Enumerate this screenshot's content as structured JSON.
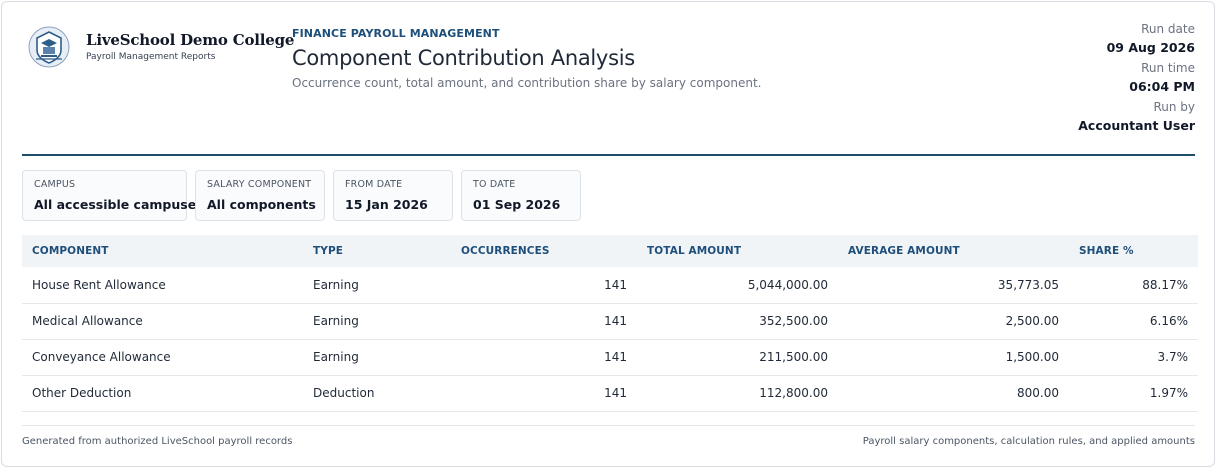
{
  "brand": {
    "name": "LiveSchool Demo College",
    "subtitle": "Payroll Management Reports",
    "logo_icon": "college-crest-icon"
  },
  "header": {
    "eyebrow": "FINANCE PAYROLL MANAGEMENT",
    "title": "Component Contribution Analysis",
    "description": "Occurrence count, total amount, and contribution share by salary component."
  },
  "run_meta": {
    "date_label": "Run date",
    "date_value": "09 Aug 2026",
    "time_label": "Run time",
    "time_value": "06:04 PM",
    "by_label": "Run by",
    "by_value": "Accountant User"
  },
  "filters": [
    {
      "label": "CAMPUS",
      "value": "All accessible campuses"
    },
    {
      "label": "SALARY COMPONENT",
      "value": "All components"
    },
    {
      "label": "FROM DATE",
      "value": "15 Jan 2026"
    },
    {
      "label": "TO DATE",
      "value": "01 Sep 2026"
    }
  ],
  "table": {
    "headers": [
      "COMPONENT",
      "TYPE",
      "OCCURRENCES",
      "TOTAL AMOUNT",
      "AVERAGE AMOUNT",
      "SHARE %"
    ],
    "rows": [
      [
        "House Rent Allowance",
        "Earning",
        "141",
        "5,044,000.00",
        "35,773.05",
        "88.17%"
      ],
      [
        "Medical Allowance",
        "Earning",
        "141",
        "352,500.00",
        "2,500.00",
        "6.16%"
      ],
      [
        "Conveyance Allowance",
        "Earning",
        "141",
        "211,500.00",
        "1,500.00",
        "3.7%"
      ],
      [
        "Other Deduction",
        "Deduction",
        "141",
        "112,800.00",
        "800.00",
        "1.97%"
      ]
    ]
  },
  "footer": {
    "left": "Generated from authorized LiveSchool payroll records",
    "right": "Payroll salary components, calculation rules, and applied amounts"
  },
  "colors": {
    "accent": "#1e4f7a",
    "rule": "#1f4e6b",
    "header_bg": "#f1f4f7"
  }
}
